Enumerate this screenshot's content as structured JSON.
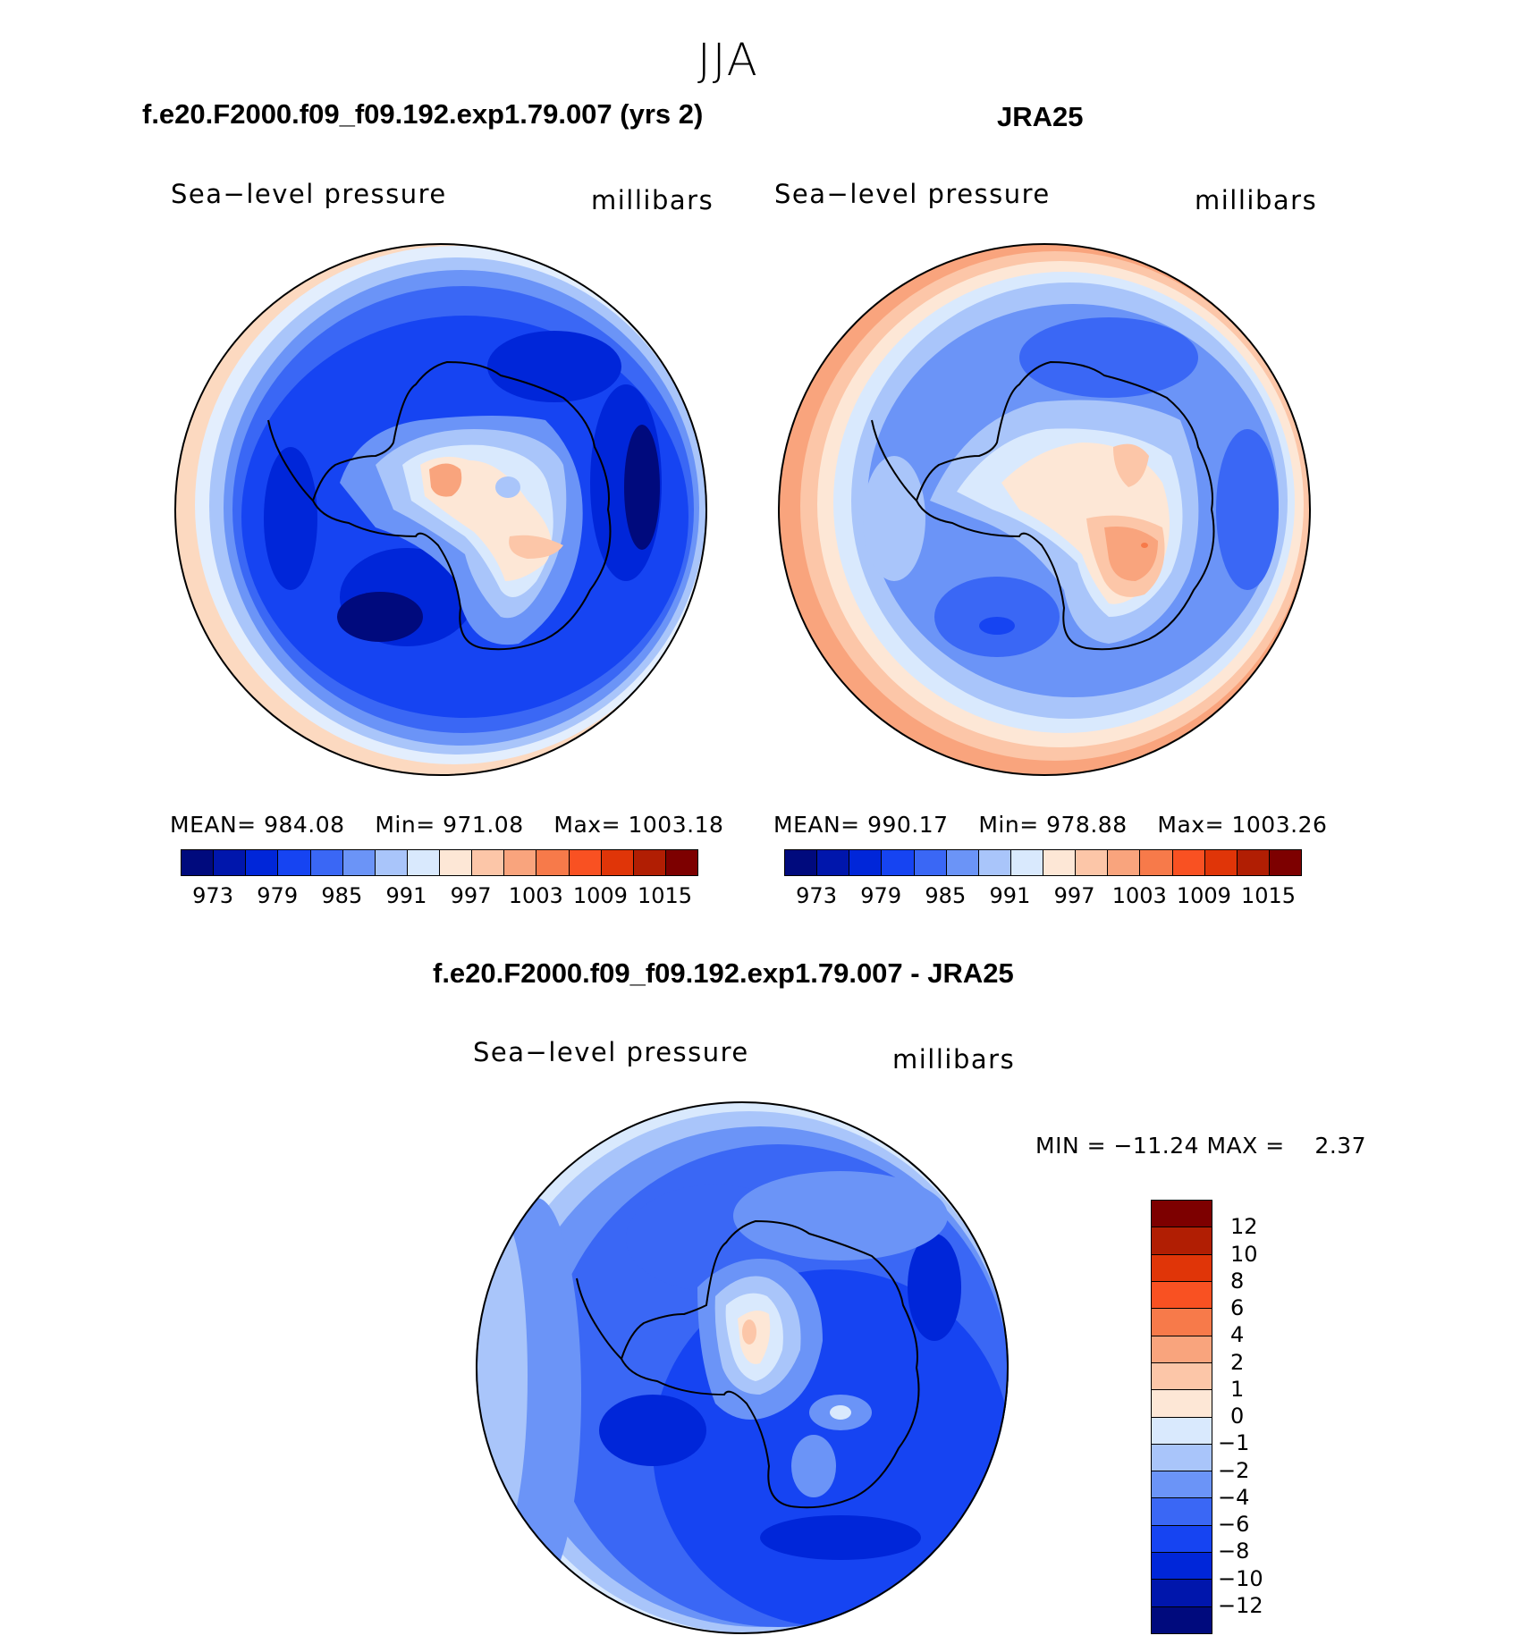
{
  "super_title": "JJA",
  "panels": [
    {
      "title": "f.e20.F2000.f09_f09.192.exp1.79.007 (yrs 2)",
      "left_label": "Sea−level pressure",
      "right_label": "millibars",
      "stats": {
        "mean_label": "MEAN=",
        "mean": "984.08",
        "min_label": "Min=",
        "min": "971.08",
        "max_label": "Max=",
        "max": "1003.18"
      }
    },
    {
      "title": "JRA25",
      "left_label": "Sea−level pressure",
      "right_label": "millibars",
      "stats": {
        "mean_label": "MEAN=",
        "mean": "990.17",
        "min_label": "Min=",
        "min": "978.88",
        "max_label": "Max=",
        "max": "1003.26"
      }
    },
    {
      "title": "f.e20.F2000.f09_f09.192.exp1.79.007 - JRA25",
      "left_label": "Sea−level pressure",
      "right_label": "millibars",
      "stats_line": "MIN = −11.24 MAX =    2.37"
    }
  ],
  "colorbar_abs": {
    "ticks": [
      "973",
      "979",
      "985",
      "991",
      "997",
      "1003",
      "1009",
      "1015"
    ],
    "colors": [
      "#000a7d",
      "#0016ac",
      "#0026d9",
      "#1644f2",
      "#3a67f5",
      "#6b94f7",
      "#a9c5fa",
      "#d9e9fd",
      "#fde7d6",
      "#fcc6a8",
      "#f9a47d",
      "#f77a4a",
      "#f95122",
      "#e03508",
      "#b11e03",
      "#7d0000"
    ]
  },
  "colorbar_diff": {
    "ticks": [
      "12",
      "10",
      "8",
      "6",
      "4",
      "2",
      "1",
      "0",
      "−1",
      "−2",
      "−4",
      "−6",
      "−8",
      "−10",
      "−12"
    ],
    "colors": [
      "#7d0000",
      "#b11e03",
      "#e03508",
      "#f95122",
      "#f77a4a",
      "#f9a47d",
      "#fcc6a8",
      "#fde7d6",
      "#d9e9fd",
      "#a9c5fa",
      "#6b94f7",
      "#3a67f5",
      "#1644f2",
      "#0026d9",
      "#0016ac",
      "#000a7d"
    ]
  }
}
